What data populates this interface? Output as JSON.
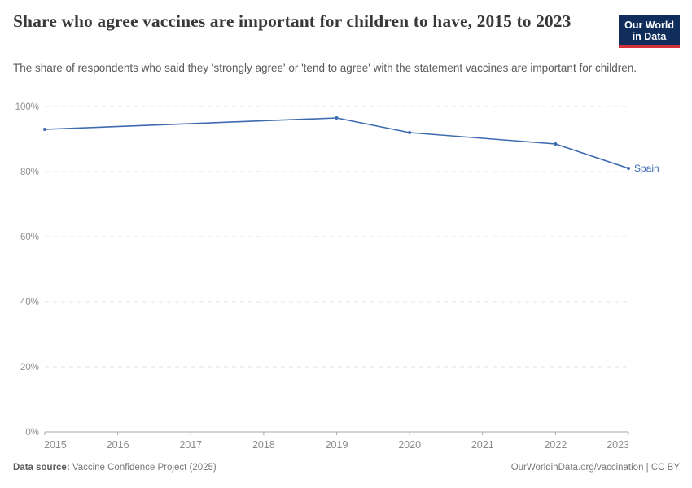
{
  "header": {
    "title": "Share who agree vaccines are important for children to have, 2015 to 2023",
    "subtitle": "The share of respondents who said they 'strongly agree' or 'tend to agree' with the statement vaccines are important for children.",
    "logo": {
      "line1": "Our World",
      "line2": "in Data",
      "bg_color": "#102d5c",
      "accent_color": "#d13239"
    }
  },
  "chart_data": {
    "type": "line",
    "title": "Share who agree vaccines are important for children to have, 2015 to 2023",
    "xlabel": "",
    "ylabel": "",
    "xlim": [
      2015,
      2023
    ],
    "ylim": [
      0,
      100
    ],
    "x_ticks": [
      2015,
      2016,
      2017,
      2018,
      2019,
      2020,
      2021,
      2022,
      2023
    ],
    "y_ticks": [
      0,
      20,
      40,
      60,
      80,
      100
    ],
    "y_tick_suffix": "%",
    "grid": "horizontal-dashed",
    "legend_position": "end-of-line-label",
    "series": [
      {
        "name": "Spain",
        "color": "#3e6bb0",
        "x": [
          2015,
          2019,
          2020,
          2022,
          2023
        ],
        "y": [
          93,
          96.5,
          92,
          88.5,
          81
        ]
      }
    ]
  },
  "footer": {
    "source_label": "Data source:",
    "source_text": "Vaccine Confidence Project (2025)",
    "attribution": "OurWorldinData.org/vaccination | CC BY"
  }
}
